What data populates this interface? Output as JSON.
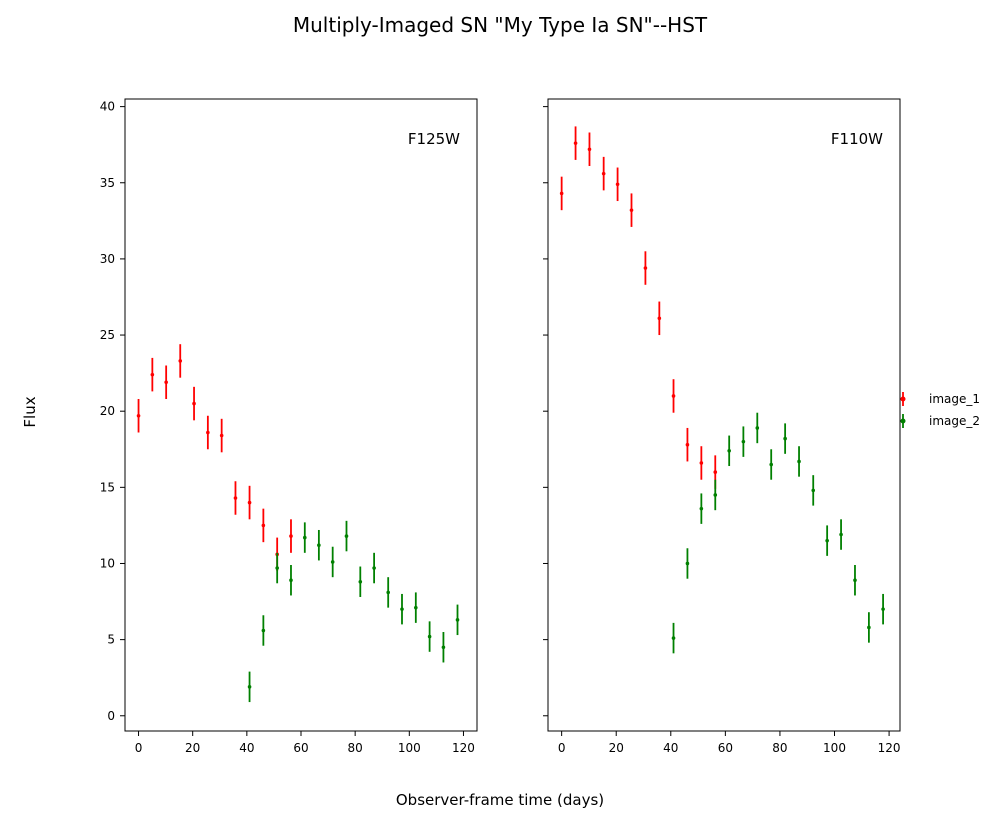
{
  "chart_data": {
    "type": "scatter",
    "title": "Multiply-Imaged SN \"My Type Ia SN\"--HST",
    "xlabel": "Observer-frame time (days)",
    "ylabel": "Flux",
    "legend": {
      "placement": "right",
      "entries": [
        "image_1",
        "image_2"
      ]
    },
    "colors": {
      "image_1": "#ff0000",
      "image_2": "#008000"
    },
    "grid": false,
    "shared_y": true,
    "panels": [
      {
        "label": "F125W",
        "xlim": [
          -5,
          125
        ],
        "ylim": [
          -1,
          40.5
        ],
        "xticks": [
          0,
          20,
          40,
          60,
          80,
          100,
          120
        ],
        "yticks": [
          0,
          5,
          10,
          15,
          20,
          25,
          30,
          35,
          40
        ],
        "series": [
          {
            "name": "image_1",
            "x": [
              0,
              5.1,
              10.2,
              15.4,
              20.5,
              25.6,
              30.7,
              35.8,
              41.0,
              46.1,
              51.2,
              56.3
            ],
            "y": [
              19.7,
              22.4,
              21.9,
              23.3,
              20.5,
              18.6,
              18.4,
              14.3,
              14.0,
              12.5,
              10.6,
              11.8
            ],
            "yerr": [
              1.1,
              1.1,
              1.1,
              1.1,
              1.1,
              1.1,
              1.1,
              1.1,
              1.1,
              1.1,
              1.1,
              1.1
            ]
          },
          {
            "name": "image_2",
            "x": [
              41.0,
              46.1,
              51.2,
              56.3,
              61.4,
              66.6,
              71.7,
              76.8,
              81.9,
              87.0,
              92.2,
              97.3,
              102.4,
              107.5,
              112.6,
              117.8
            ],
            "y": [
              1.9,
              5.6,
              9.7,
              8.9,
              11.7,
              11.2,
              10.1,
              11.8,
              8.8,
              9.7,
              8.1,
              7.0,
              7.1,
              5.2,
              4.5,
              6.3
            ],
            "yerr": [
              1.0,
              1.0,
              1.0,
              1.0,
              1.0,
              1.0,
              1.0,
              1.0,
              1.0,
              1.0,
              1.0,
              1.0,
              1.0,
              1.0,
              1.0,
              1.0
            ]
          }
        ]
      },
      {
        "label": "F110W",
        "xlim": [
          -5,
          124
        ],
        "ylim": [
          -1,
          40.5
        ],
        "xticks": [
          0,
          20,
          40,
          60,
          80,
          100,
          120
        ],
        "yticks": [
          0,
          5,
          10,
          15,
          20,
          25,
          30,
          35,
          40
        ],
        "series": [
          {
            "name": "image_1",
            "x": [
              0,
              5.1,
              10.2,
              15.4,
              20.5,
              25.6,
              30.7,
              35.8,
              41.0,
              46.1,
              51.2,
              56.3
            ],
            "y": [
              34.3,
              37.6,
              37.2,
              35.6,
              34.9,
              33.2,
              29.4,
              26.1,
              21.0,
              17.8,
              16.6,
              16.0
            ],
            "yerr": [
              1.1,
              1.1,
              1.1,
              1.1,
              1.1,
              1.1,
              1.1,
              1.1,
              1.1,
              1.1,
              1.1,
              1.1
            ]
          },
          {
            "name": "image_2",
            "x": [
              41.0,
              46.1,
              51.2,
              56.3,
              61.4,
              66.6,
              71.7,
              76.8,
              81.9,
              87.0,
              92.2,
              97.3,
              102.4,
              107.5,
              112.6,
              117.8
            ],
            "y": [
              5.1,
              10.0,
              13.6,
              14.5,
              17.4,
              18.0,
              18.9,
              16.5,
              18.2,
              16.7,
              14.8,
              11.5,
              11.9,
              8.9,
              5.8,
              7.0
            ],
            "yerr": [
              1.0,
              1.0,
              1.0,
              1.0,
              1.0,
              1.0,
              1.0,
              1.0,
              1.0,
              1.0,
              1.0,
              1.0,
              1.0,
              1.0,
              1.0,
              1.0
            ]
          }
        ]
      }
    ]
  }
}
